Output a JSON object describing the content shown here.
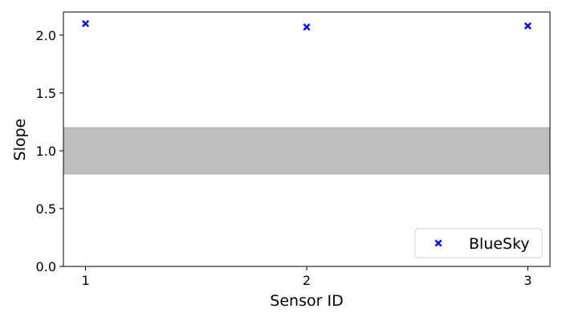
{
  "chart_data": {
    "type": "scatter",
    "title": "",
    "xlabel": "Sensor ID",
    "ylabel": "Slope",
    "xlim": [
      0.9,
      3.1
    ],
    "ylim": [
      0.0,
      2.2
    ],
    "xticks": [
      1,
      2,
      3
    ],
    "xtick_labels": [
      "1",
      "2",
      "3"
    ],
    "yticks": [
      0.0,
      0.5,
      1.0,
      1.5,
      2.0
    ],
    "ytick_labels": [
      "0.0",
      "0.5",
      "1.0",
      "1.5",
      "2.0"
    ],
    "grid": false,
    "legend_position": "bottom-right",
    "shaded_band": {
      "y_min": 0.8,
      "y_max": 1.2,
      "color": "#bebebe"
    },
    "series": [
      {
        "name": "BlueSky",
        "marker": "x-filled",
        "color": "#0000ff",
        "x": [
          1,
          2,
          3
        ],
        "y": [
          2.1,
          2.07,
          2.08
        ]
      }
    ]
  }
}
